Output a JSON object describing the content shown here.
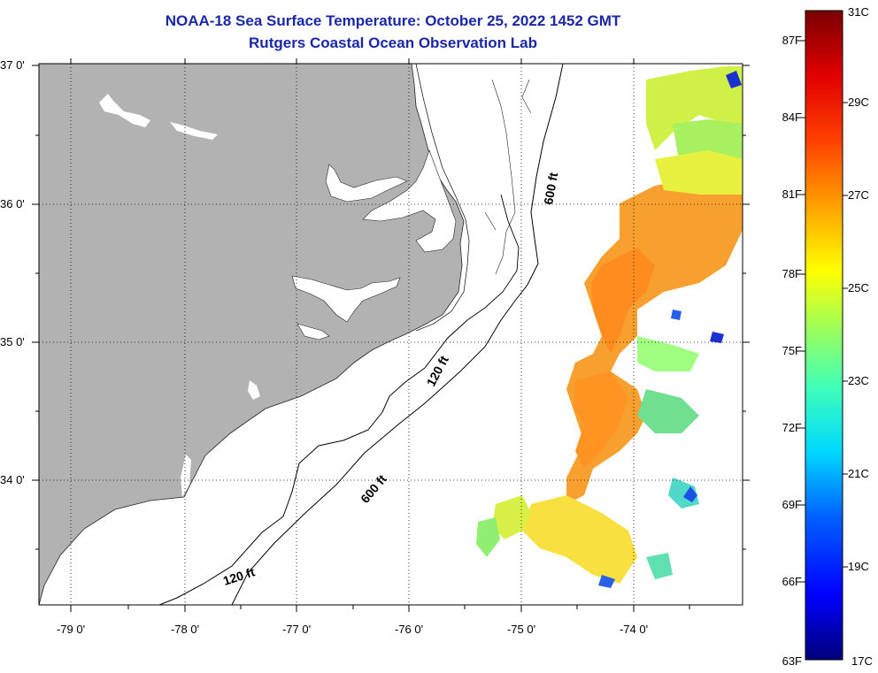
{
  "title": {
    "line1": "NOAA-18 Sea Surface Temperature:  October 25, 2022 1452 GMT",
    "line2": "Rutgers Coastal Ocean Observation Lab"
  },
  "map": {
    "lat_labels": [
      "37 0'",
      "36 0'",
      "35 0'",
      "34 0'"
    ],
    "lon_labels": [
      "-79 0'",
      "-78 0'",
      "-77 0'",
      "-76 0'",
      "-75 0'",
      "-74 0'"
    ],
    "contours": {
      "c120_north": "120 ft",
      "c120_south": "120 ft",
      "c600_north": "600 ft",
      "c600_south": "600 ft"
    },
    "land_color": "#b2b2b2"
  },
  "colorbar": {
    "fahrenheit": [
      "87F",
      "84F",
      "81F",
      "78F",
      "75F",
      "72F",
      "69F",
      "66F",
      "63F"
    ],
    "celsius": [
      "31C",
      "29C",
      "27C",
      "25C",
      "23C",
      "21C",
      "19C",
      "17C"
    ]
  }
}
